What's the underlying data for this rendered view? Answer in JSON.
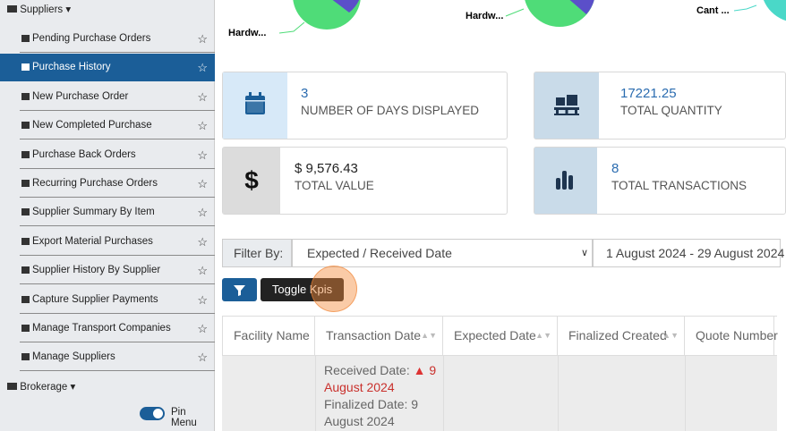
{
  "sidebar": {
    "suppliers": "Suppliers",
    "items": [
      "Pending Purchase Orders",
      "Purchase History",
      "New Purchase Order",
      "New Completed Purchase",
      "Purchase Back Orders",
      "Recurring Purchase Orders",
      "Supplier Summary By Item",
      "Export Material Purchases",
      "Supplier History By Supplier",
      "Capture Supplier Payments",
      "Manage Transport Companies",
      "Manage Suppliers"
    ],
    "brokerage": "Brokerage",
    "pin_menu": "Pin Menu"
  },
  "pies": [
    "Hardw...",
    "Hardw...",
    "Cant ..."
  ],
  "kpis": [
    {
      "value": "3",
      "label": "NUMBER OF DAYS DISPLAYED"
    },
    {
      "value": "17221.25",
      "label": "TOTAL QUANTITY"
    },
    {
      "value": "$ 9,576.43",
      "label": "TOTAL VALUE"
    },
    {
      "value": "8",
      "label": "TOTAL TRANSACTIONS"
    }
  ],
  "filter": {
    "label": "Filter By:",
    "select": "Expected / Received Date",
    "date_range": "1 August 2024 - 29 August 2024"
  },
  "buttons": {
    "toggle": "Toggle Kpis"
  },
  "table": {
    "columns": [
      "Facility Name",
      "Transaction Date",
      "Expected Date",
      "Finalized Created",
      "Quote Number"
    ],
    "row": {
      "received_label": "Received Date:",
      "received_value": "9 August 2024",
      "finalized_label": "Finalized Date:",
      "finalized_value": "9 August 2024"
    }
  }
}
